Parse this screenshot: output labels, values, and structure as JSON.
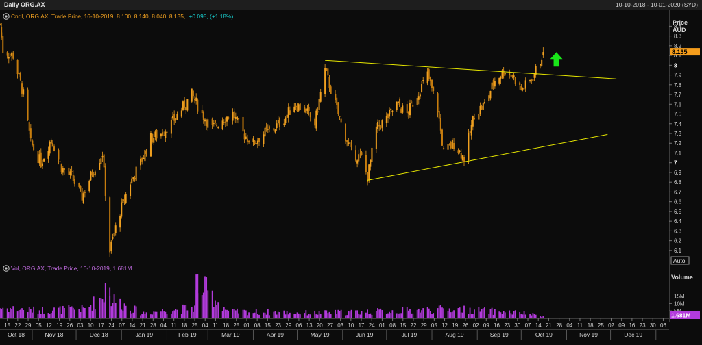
{
  "window": {
    "title": "Daily ORG.AX",
    "date_range": "10-10-2018 - 10-01-2020 (SYD)"
  },
  "colors": {
    "bg": "#0c0c0c",
    "candle": "#f0a020",
    "volume": "#b23bdc",
    "trend": "#e6e600",
    "last_price_bg": "#f59d1c",
    "last_vol_bg": "#b23bdc",
    "arrow": "#19e619",
    "price_legend": "#f0a020",
    "vol_legend": "#c06be0"
  },
  "price_panel": {
    "legend": {
      "icon": "gear-icon",
      "name": "Cndl, ORG.AX, Trade Price, 16-10-2019, 8.100, 8.140, 8.040, 8.135,",
      "change": "+0.095, (+1.18%)"
    },
    "axis_title": [
      "Price",
      "AUD"
    ],
    "last_price": "8.135",
    "auto_button": "Auto"
  },
  "volume_panel": {
    "legend": {
      "icon": "gear-icon",
      "name": "Vol, ORG.AX, Trade Price, 16-10-2019, 1.681M"
    },
    "axis_title": "Volume",
    "last_volume": "1.681M"
  },
  "x_axis": {
    "day_labels": [
      "15",
      "22",
      "29",
      "05",
      "12",
      "19",
      "26",
      "03",
      "10",
      "17",
      "24",
      "07",
      "14",
      "21",
      "28",
      "04",
      "11",
      "18",
      "25",
      "04",
      "11",
      "18",
      "25",
      "01",
      "08",
      "15",
      "23",
      "29",
      "06",
      "13",
      "20",
      "27",
      "03",
      "10",
      "17",
      "24",
      "01",
      "08",
      "15",
      "22",
      "29",
      "05",
      "12",
      "19",
      "26",
      "02",
      "09",
      "16",
      "23",
      "30",
      "07",
      "14",
      "21",
      "28",
      "04",
      "11",
      "18",
      "25",
      "02",
      "09",
      "16",
      "23",
      "30",
      "06"
    ],
    "month_labels": [
      "Oct 18",
      "Nov 18",
      "Dec 18",
      "Jan 19",
      "Feb 19",
      "Mar 19",
      "Apr 19",
      "May 19",
      "Jun 19",
      "Jul 19",
      "Aug 19",
      "Sep 19",
      "Oct 19",
      "Nov 19",
      "Dec 19"
    ]
  },
  "chart_data": [
    {
      "type": "candlestick",
      "title": "Daily ORG.AX",
      "ylabel": "Price AUD",
      "ylim": [
        6.05,
        8.55
      ],
      "y_ticks": [
        6.1,
        6.2,
        6.3,
        6.4,
        6.5,
        6.6,
        6.7,
        6.8,
        6.9,
        7,
        7.1,
        7.2,
        7.3,
        7.4,
        7.5,
        7.6,
        7.7,
        7.8,
        7.9,
        8,
        8.1,
        8.2,
        8.3,
        8.4
      ],
      "x_range": [
        "2018-10-10",
        "2020-01-10"
      ],
      "anchors": [
        [
          "2018-10-10",
          8.42
        ],
        [
          "2018-10-12",
          8.15
        ],
        [
          "2018-10-19",
          8.1
        ],
        [
          "2018-10-26",
          7.7
        ],
        [
          "2018-10-31",
          7.2
        ],
        [
          "2018-11-07",
          7.0
        ],
        [
          "2018-11-14",
          7.25
        ],
        [
          "2018-11-21",
          6.95
        ],
        [
          "2018-11-28",
          6.85
        ],
        [
          "2018-12-05",
          6.65
        ],
        [
          "2018-12-12",
          6.9
        ],
        [
          "2018-12-19",
          7.1
        ],
        [
          "2018-12-24",
          6.1
        ],
        [
          "2018-12-31",
          6.5
        ],
        [
          "2019-01-07",
          6.8
        ],
        [
          "2019-01-14",
          7.0
        ],
        [
          "2019-01-21",
          7.25
        ],
        [
          "2019-01-28",
          7.3
        ],
        [
          "2019-02-04",
          7.4
        ],
        [
          "2019-02-11",
          7.55
        ],
        [
          "2019-02-18",
          7.7
        ],
        [
          "2019-02-25",
          7.5
        ],
        [
          "2019-03-04",
          7.35
        ],
        [
          "2019-03-11",
          7.45
        ],
        [
          "2019-03-18",
          7.5
        ],
        [
          "2019-03-25",
          7.3
        ],
        [
          "2019-04-01",
          7.2
        ],
        [
          "2019-04-08",
          7.3
        ],
        [
          "2019-04-15",
          7.35
        ],
        [
          "2019-04-22",
          7.45
        ],
        [
          "2019-04-29",
          7.6
        ],
        [
          "2019-05-06",
          7.55
        ],
        [
          "2019-05-13",
          7.4
        ],
        [
          "2019-05-20",
          7.95
        ],
        [
          "2019-05-24",
          7.75
        ],
        [
          "2019-05-31",
          7.4
        ],
        [
          "2019-06-07",
          7.1
        ],
        [
          "2019-06-14",
          7.05
        ],
        [
          "2019-06-18",
          6.85
        ],
        [
          "2019-06-24",
          7.35
        ],
        [
          "2019-07-01",
          7.45
        ],
        [
          "2019-07-08",
          7.6
        ],
        [
          "2019-07-15",
          7.5
        ],
        [
          "2019-07-22",
          7.7
        ],
        [
          "2019-07-29",
          7.9
        ],
        [
          "2019-08-05",
          7.55
        ],
        [
          "2019-08-09",
          7.1
        ],
        [
          "2019-08-16",
          7.2
        ],
        [
          "2019-08-23",
          7.05
        ],
        [
          "2019-08-30",
          7.5
        ],
        [
          "2019-09-06",
          7.6
        ],
        [
          "2019-09-13",
          7.85
        ],
        [
          "2019-09-20",
          7.95
        ],
        [
          "2019-09-25",
          7.9
        ],
        [
          "2019-10-01",
          7.75
        ],
        [
          "2019-10-08",
          7.85
        ],
        [
          "2019-10-14",
          8.05
        ],
        [
          "2019-10-16",
          8.135
        ]
      ],
      "trendlines": [
        {
          "from": [
            "2019-05-20",
            8.05
          ],
          "to": [
            "2019-12-05",
            7.86
          ]
        },
        {
          "from": [
            "2019-06-18",
            6.82
          ],
          "to": [
            "2019-11-29",
            7.29
          ]
        }
      ],
      "annotation": {
        "type": "up-arrow",
        "date": "2019-10-25",
        "value": 8.05
      },
      "last": {
        "date": "2019-10-16",
        "open": 8.1,
        "high": 8.14,
        "low": 8.04,
        "close": 8.135,
        "change": 0.095,
        "change_pct": 1.18
      }
    },
    {
      "type": "bar",
      "title": "Volume",
      "y_ticks_labels": [
        "15M",
        "10M",
        "5M"
      ],
      "y_ticks": [
        15000000,
        10000000,
        5000000
      ],
      "ylim": [
        0,
        30000000
      ],
      "anchors": [
        [
          "2018-10-10",
          8000000
        ],
        [
          "2018-11-01",
          6000000
        ],
        [
          "2018-12-07",
          7000000
        ],
        [
          "2018-12-20",
          17000000
        ],
        [
          "2019-01-15",
          4000000
        ],
        [
          "2019-02-20",
          8000000
        ],
        [
          "2019-02-22",
          27000000
        ],
        [
          "2019-03-15",
          5000000
        ],
        [
          "2019-05-15",
          4000000
        ],
        [
          "2019-06-20",
          5000000
        ],
        [
          "2019-08-15",
          7000000
        ],
        [
          "2019-10-01",
          4000000
        ],
        [
          "2019-10-16",
          1681000
        ]
      ]
    }
  ]
}
